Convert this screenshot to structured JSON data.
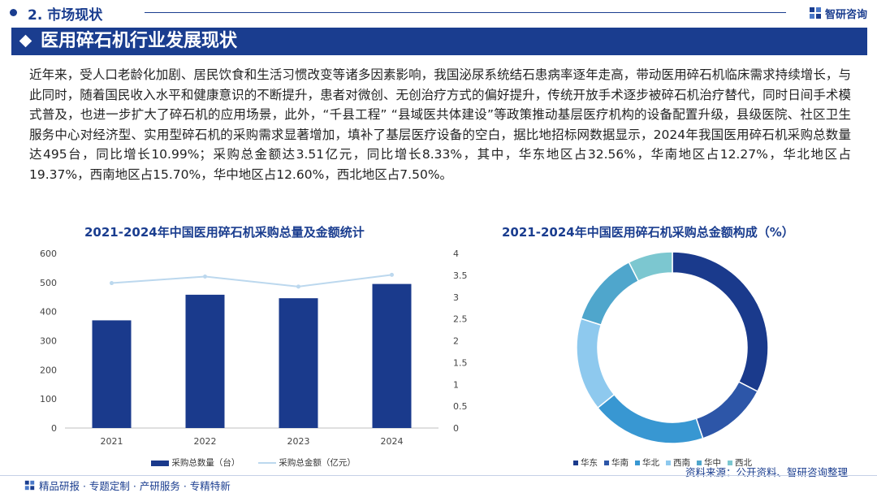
{
  "header": {
    "section_label": "2. 市场现状",
    "brand_name": "智研咨询",
    "page_title": "医用碎石机行业发展现状"
  },
  "body_text": "近年来，受人口老龄化加剧、居民饮食和生活习惯改变等诸多因素影响，我国泌尿系统结石患病率逐年走高，带动医用碎石机临床需求持续增长，与此同时，随着国民收入水平和健康意识的不断提升，患者对微创、无创治疗方式的偏好提升，传统开放手术逐步被碎石机治疗替代，同时日间手术模式普及，也进一步扩大了碎石机的应用场景，此外，“千县工程” “县域医共体建设”等政策推动基层医疗机构的设备配置升级，县级医院、社区卫生服务中心对经济型、实用型碎石机的采购需求显著增加，填补了基层医疗设备的空白，据比地招标网数据显示，2024年我国医用碎石机采购总数量达495台，同比增长10.99%；采购总金额达3.51亿元，同比增长8.33%，其中，华东地区占32.56%，华南地区占12.27%，华北地区占19.37%，西南地区占15.70%，华中地区占12.60%，西北地区占7.50%。",
  "colors": {
    "brand": "#1a3d8f",
    "bar": "#1a3a8c",
    "line": "#bcd8ee"
  },
  "chart_data": [
    {
      "type": "bar",
      "title": "2021-2024年中国医用碎石机采购总量及金额统计",
      "categories": [
        "2021",
        "2022",
        "2023",
        "2024"
      ],
      "y_ticks_left": [
        "0",
        "100",
        "200",
        "300",
        "400",
        "500",
        "600"
      ],
      "y_ticks_right": [
        "0",
        "0.5",
        "1",
        "1.5",
        "2",
        "2.5",
        "3",
        "3.5",
        "4"
      ],
      "ylim_left": [
        0,
        600
      ],
      "ylim_right": [
        0,
        4
      ],
      "series": [
        {
          "name": "采购总数量（台）",
          "type": "bar",
          "axis": "left",
          "values": [
            370,
            458,
            446,
            495
          ]
        },
        {
          "name": "采购总金额（亿元）",
          "type": "line",
          "axis": "right",
          "values": [
            3.32,
            3.47,
            3.24,
            3.51
          ]
        }
      ],
      "grid": false,
      "legend_position": "bottom"
    },
    {
      "type": "pie",
      "title": "2021-2024年中国医用碎石机采购总金额构成（%）",
      "donut": true,
      "labels": [
        "华东",
        "华南",
        "华北",
        "西南",
        "华中",
        "西北"
      ],
      "values": [
        32.56,
        12.27,
        19.37,
        15.7,
        12.6,
        7.5
      ],
      "colors": [
        "#1a3a8c",
        "#2d56a8",
        "#3897d2",
        "#8ec9ee",
        "#4fa6cc",
        "#7cc7d0"
      ],
      "legend_position": "bottom"
    }
  ],
  "source_label": "资料来源：公开资料、智研咨询整理",
  "footer_text": "精品研报 · 专题定制 · 产研服务 · 专精特新"
}
